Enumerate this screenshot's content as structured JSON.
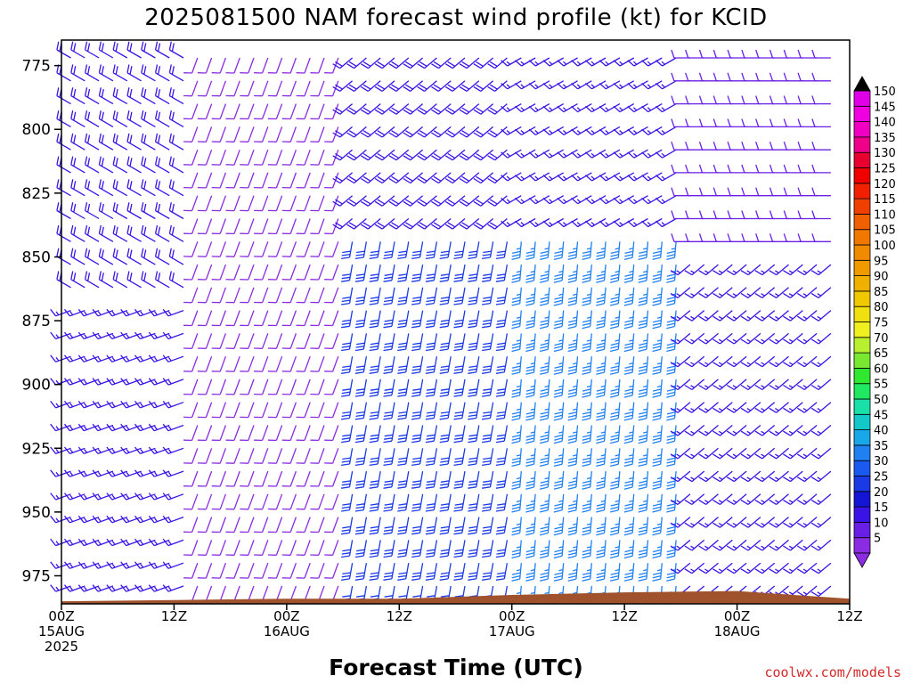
{
  "chart_data": {
    "type": "wind-barb time-height cross section",
    "title": "2025081500 NAM forecast wind profile (kt) for KCID",
    "xlabel": "Forecast Time (UTC)",
    "ylabel": "",
    "credit": "coolwx.com/models",
    "y_axis": {
      "ticks": [
        775,
        800,
        825,
        850,
        875,
        900,
        925,
        950,
        975
      ],
      "range_hpa": [
        765,
        986
      ],
      "inverted": true
    },
    "x_axis": {
      "range_hours": [
        0,
        84
      ],
      "ticks": [
        {
          "hour": 0,
          "line1": "00Z",
          "line2": "15AUG",
          "line3": "2025"
        },
        {
          "hour": 12,
          "line1": "12Z",
          "line2": "",
          "line3": ""
        },
        {
          "hour": 24,
          "line1": "00Z",
          "line2": "16AUG",
          "line3": ""
        },
        {
          "hour": 36,
          "line1": "12Z",
          "line2": "",
          "line3": ""
        },
        {
          "hour": 48,
          "line1": "00Z",
          "line2": "17AUG",
          "line3": ""
        },
        {
          "hour": 60,
          "line1": "12Z",
          "line2": "",
          "line3": ""
        },
        {
          "hour": 72,
          "line1": "00Z",
          "line2": "18AUG",
          "line3": ""
        },
        {
          "hour": 84,
          "line1": "12Z",
          "line2": "",
          "line3": ""
        }
      ]
    },
    "colorbar": {
      "levels": [
        5,
        10,
        15,
        20,
        25,
        30,
        35,
        40,
        45,
        50,
        55,
        60,
        65,
        70,
        75,
        80,
        85,
        90,
        95,
        100,
        105,
        110,
        115,
        120,
        125,
        130,
        135,
        140,
        145,
        150
      ],
      "colors": [
        "#8b2be2",
        "#6a1fe6",
        "#3a14e6",
        "#1414d4",
        "#1a3ae6",
        "#1a5af0",
        "#1f80f2",
        "#18a8ea",
        "#12c8c8",
        "#18e0a8",
        "#20e860",
        "#30e830",
        "#78e830",
        "#b8f030",
        "#f0f020",
        "#f0e010",
        "#f0c800",
        "#f0b000",
        "#f09a00",
        "#f08a00",
        "#f07800",
        "#f06000",
        "#f04000",
        "#f02000",
        "#f00000",
        "#e80030",
        "#f0008a",
        "#f000c0",
        "#f000e0",
        "#e000e8"
      ],
      "labels": [
        "150",
        "145",
        "140",
        "135",
        "130",
        "125",
        "120",
        "115",
        "110",
        "105",
        "100",
        "95",
        "90",
        "85",
        "80",
        "75",
        "70",
        "65",
        "60",
        "55",
        "50",
        "45",
        "40",
        "35",
        "30",
        "25",
        "20",
        "15",
        "10",
        "5"
      ],
      "top_arrow_color": "#000000",
      "bottom_arrow_color": "#8b2be2"
    },
    "terrain": {
      "color": "#a0522d",
      "surface_pressure_hpa": [
        {
          "hour": 0,
          "p": 985
        },
        {
          "hour": 12,
          "p": 984.5
        },
        {
          "hour": 24,
          "p": 984
        },
        {
          "hour": 36,
          "p": 984
        },
        {
          "hour": 48,
          "p": 982.5
        },
        {
          "hour": 60,
          "p": 981.5
        },
        {
          "hour": 72,
          "p": 981
        },
        {
          "hour": 84,
          "p": 984
        }
      ]
    },
    "wind_regimes": [
      {
        "hours": [
          0,
          14
        ],
        "p_range": [
          770,
          870
        ],
        "speed_kt": 18,
        "dir_deg": 300
      },
      {
        "hours": [
          0,
          14
        ],
        "p_range": [
          870,
          985
        ],
        "speed_kt": 16,
        "dir_deg": 250
      },
      {
        "hours": [
          14,
          30
        ],
        "p_range": [
          770,
          985
        ],
        "speed_kt": 8,
        "dir_deg": 200
      },
      {
        "hours": [
          30,
          48
        ],
        "p_range": [
          770,
          840
        ],
        "speed_kt": 18,
        "dir_deg": 230
      },
      {
        "hours": [
          30,
          48
        ],
        "p_range": [
          840,
          985
        ],
        "speed_kt": 28,
        "dir_deg": 190
      },
      {
        "hours": [
          48,
          66
        ],
        "p_range": [
          770,
          840
        ],
        "speed_kt": 16,
        "dir_deg": 240
      },
      {
        "hours": [
          48,
          66
        ],
        "p_range": [
          840,
          985
        ],
        "speed_kt": 36,
        "dir_deg": 185
      },
      {
        "hours": [
          66,
          84
        ],
        "p_range": [
          770,
          850
        ],
        "speed_kt": 12,
        "dir_deg": 270
      },
      {
        "hours": [
          66,
          84
        ],
        "p_range": [
          850,
          985
        ],
        "speed_kt": 16,
        "dir_deg": 230
      }
    ]
  }
}
